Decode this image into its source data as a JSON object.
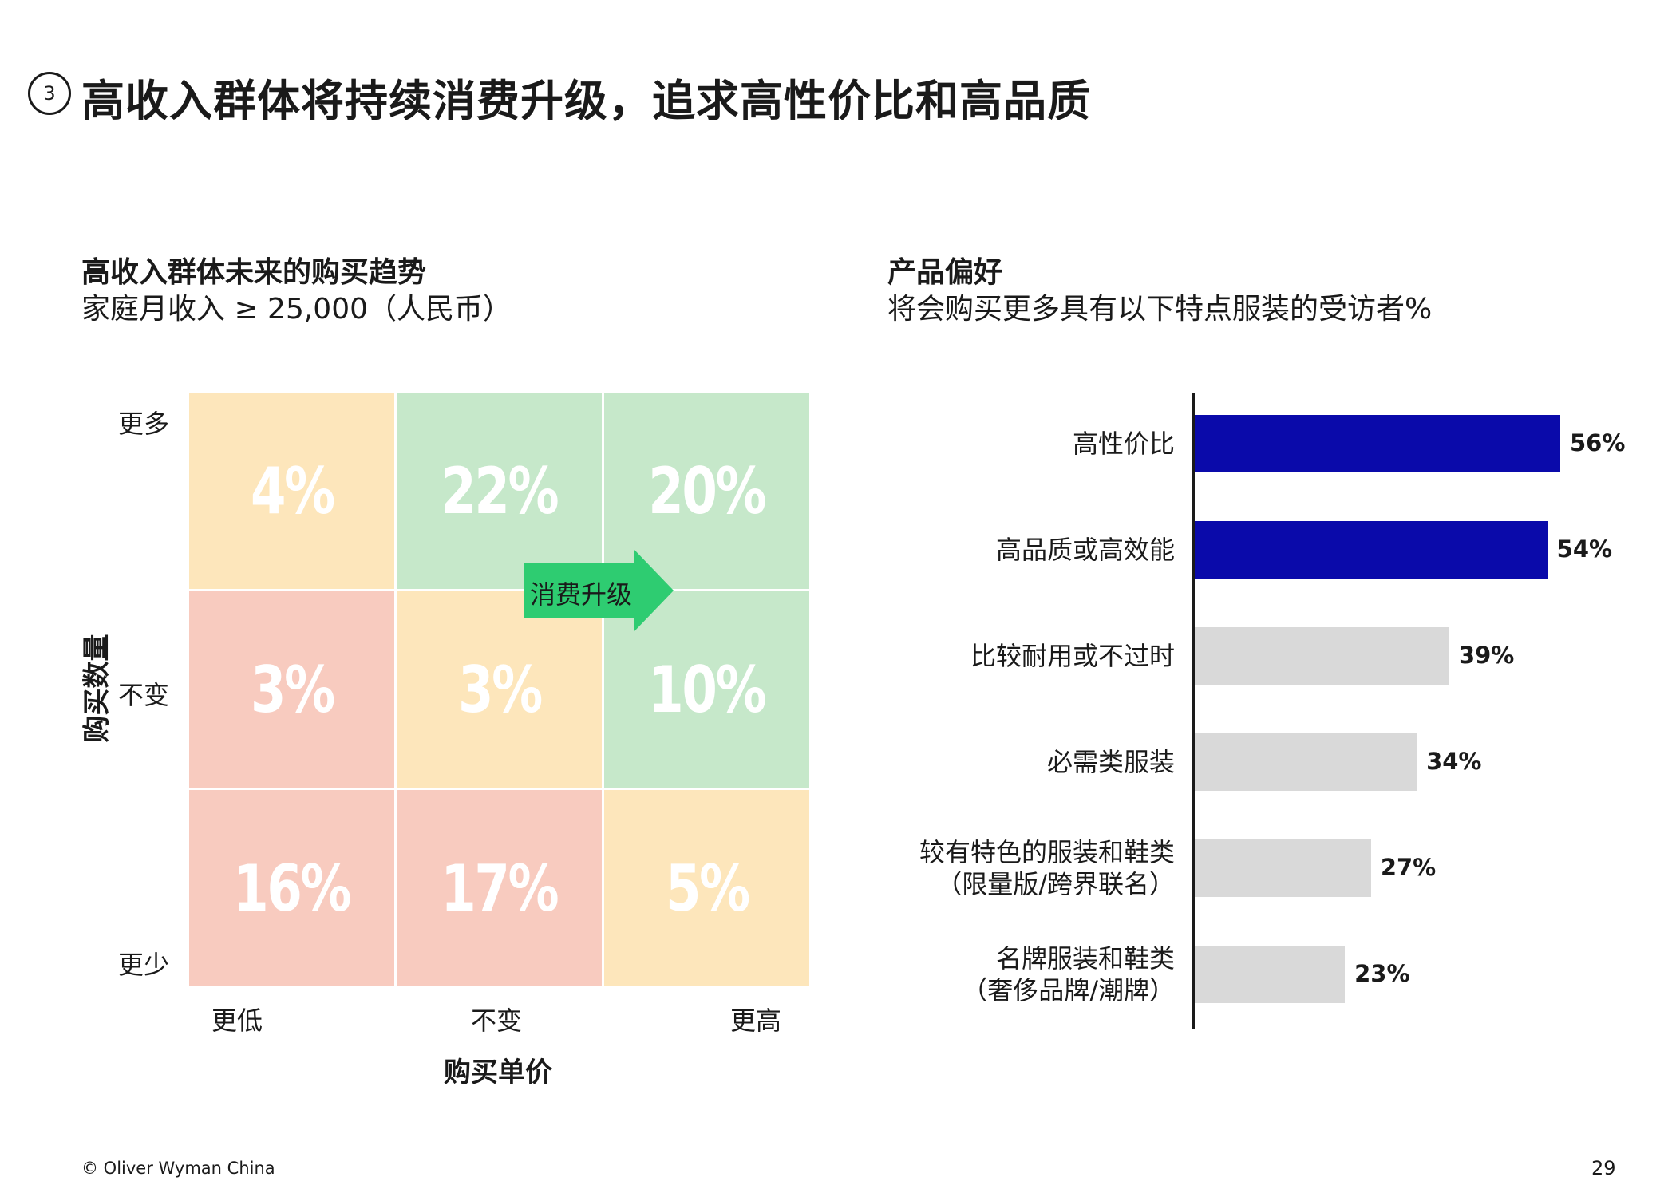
{
  "header": {
    "section_number": "3",
    "title": "高收入群体将持续消费升级，追求高性价比和高品质"
  },
  "left_panel": {
    "title": "高收入群体未来的购买趋势",
    "subtitle": "家庭月收入 ≥ 25,000（人民币）"
  },
  "right_panel": {
    "title": "产品偏好",
    "subtitle": "将会购买更多具有以下特点服装的受访者%"
  },
  "chart_data": [
    {
      "type": "heatmap",
      "xlabel": "购买单价",
      "ylabel": "购买数量",
      "x_categories": [
        "更低",
        "不变",
        "更高"
      ],
      "y_categories": [
        "更多",
        "不变",
        "更少"
      ],
      "cells": [
        {
          "row": 0,
          "col": 0,
          "label": "4%",
          "value": 4,
          "color": "#fde6bb"
        },
        {
          "row": 0,
          "col": 1,
          "label": "22%",
          "value": 22,
          "color": "#c6e8ca"
        },
        {
          "row": 0,
          "col": 2,
          "label": "20%",
          "value": 20,
          "color": "#c6e8ca"
        },
        {
          "row": 1,
          "col": 0,
          "label": "3%",
          "value": 3,
          "color": "#f8cbbf"
        },
        {
          "row": 1,
          "col": 1,
          "label": "3%",
          "value": 3,
          "color": "#fde6bb"
        },
        {
          "row": 1,
          "col": 2,
          "label": "10%",
          "value": 10,
          "color": "#c6e8ca"
        },
        {
          "row": 2,
          "col": 0,
          "label": "16%",
          "value": 16,
          "color": "#f8cbbf"
        },
        {
          "row": 2,
          "col": 1,
          "label": "17%",
          "value": 17,
          "color": "#f8cbbf"
        },
        {
          "row": 2,
          "col": 2,
          "label": "5%",
          "value": 5,
          "color": "#fde6bb"
        }
      ],
      "annotation": {
        "text": "消费升级",
        "color": "#2ecc71"
      }
    },
    {
      "type": "bar",
      "orientation": "horizontal",
      "categories": [
        [
          "高性价比"
        ],
        [
          "高品质或高效能"
        ],
        [
          "比较耐用或不过时"
        ],
        [
          "必需类服装"
        ],
        [
          "较有特色的服装和鞋类",
          "（限量版/跨界联名）"
        ],
        [
          "名牌服装和鞋类",
          "（奢侈品牌/潮牌）"
        ]
      ],
      "values": [
        56,
        54,
        39,
        34,
        27,
        23
      ],
      "value_labels": [
        "56%",
        "54%",
        "39%",
        "34%",
        "27%",
        "23%"
      ],
      "bar_colors": [
        "#0a0aaa",
        "#0a0aaa",
        "#d9d9d9",
        "#d9d9d9",
        "#d9d9d9",
        "#d9d9d9"
      ],
      "xlim": [
        0,
        60
      ]
    }
  ],
  "footer": {
    "copyright": "© Oliver Wyman China",
    "page_number": "29"
  }
}
